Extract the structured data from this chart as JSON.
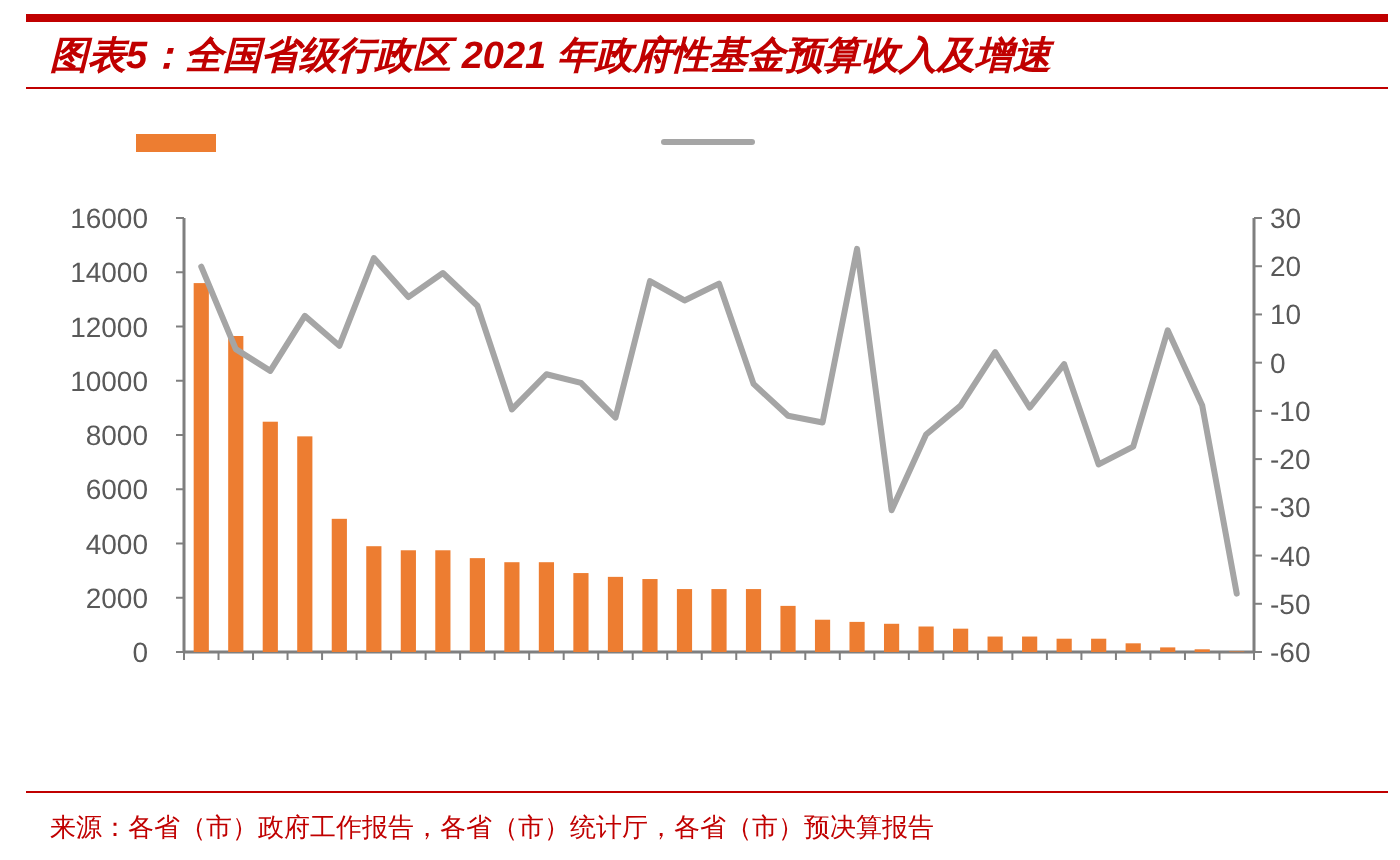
{
  "chart_data": {
    "type": "bar",
    "title": "图表5：全国省级行政区 2021 年政府性基金预算收入及增速",
    "categories": [
      null,
      null,
      null,
      null,
      null,
      null,
      null,
      null,
      null,
      null,
      null,
      null,
      null,
      null,
      null,
      null,
      null,
      null,
      null,
      null,
      null,
      null,
      null,
      null,
      null,
      null,
      null,
      null,
      null,
      null,
      null
    ],
    "series": [
      {
        "color": "#ed7d31",
        "values": [
          13600,
          11650,
          8490,
          7950,
          4910,
          3900,
          3750,
          3750,
          3460,
          3310,
          3310,
          2910,
          2770,
          2690,
          2320,
          2320,
          2320,
          1700,
          1190,
          1110,
          1040,
          940,
          860,
          570,
          570,
          490,
          490,
          320,
          170,
          100,
          20
        ]
      },
      {
        "type": "line",
        "axis": "y2",
        "color": "#a5a5a5",
        "values": [
          19.9,
          2.8,
          -1.7,
          9.7,
          3.5,
          21.7,
          13.6,
          18.6,
          11.8,
          -9.7,
          -2.4,
          -4.2,
          -11.4,
          16.9,
          12.9,
          16.4,
          -4.4,
          -11,
          -12.4,
          23.6,
          -30.6,
          -14.9,
          -8.9,
          2.2,
          -9.3,
          -0.3,
          -21.1,
          -17.4,
          6.7,
          -8.9,
          -47.9
        ]
      }
    ],
    "ylim": [
      0,
      16000
    ],
    "yticks": [
      0,
      2000,
      4000,
      6000,
      8000,
      10000,
      12000,
      14000,
      16000
    ],
    "y2lim": [
      -60,
      30
    ],
    "y2ticks": [
      -60,
      -50,
      -40,
      -30,
      -20,
      -10,
      0,
      10,
      20,
      30
    ],
    "grid": false,
    "marker": "none",
    "annotations": [
      "来源：各省（市）政府工作报告，各省（市）统计厅，各省（市）预决算报告"
    ]
  }
}
